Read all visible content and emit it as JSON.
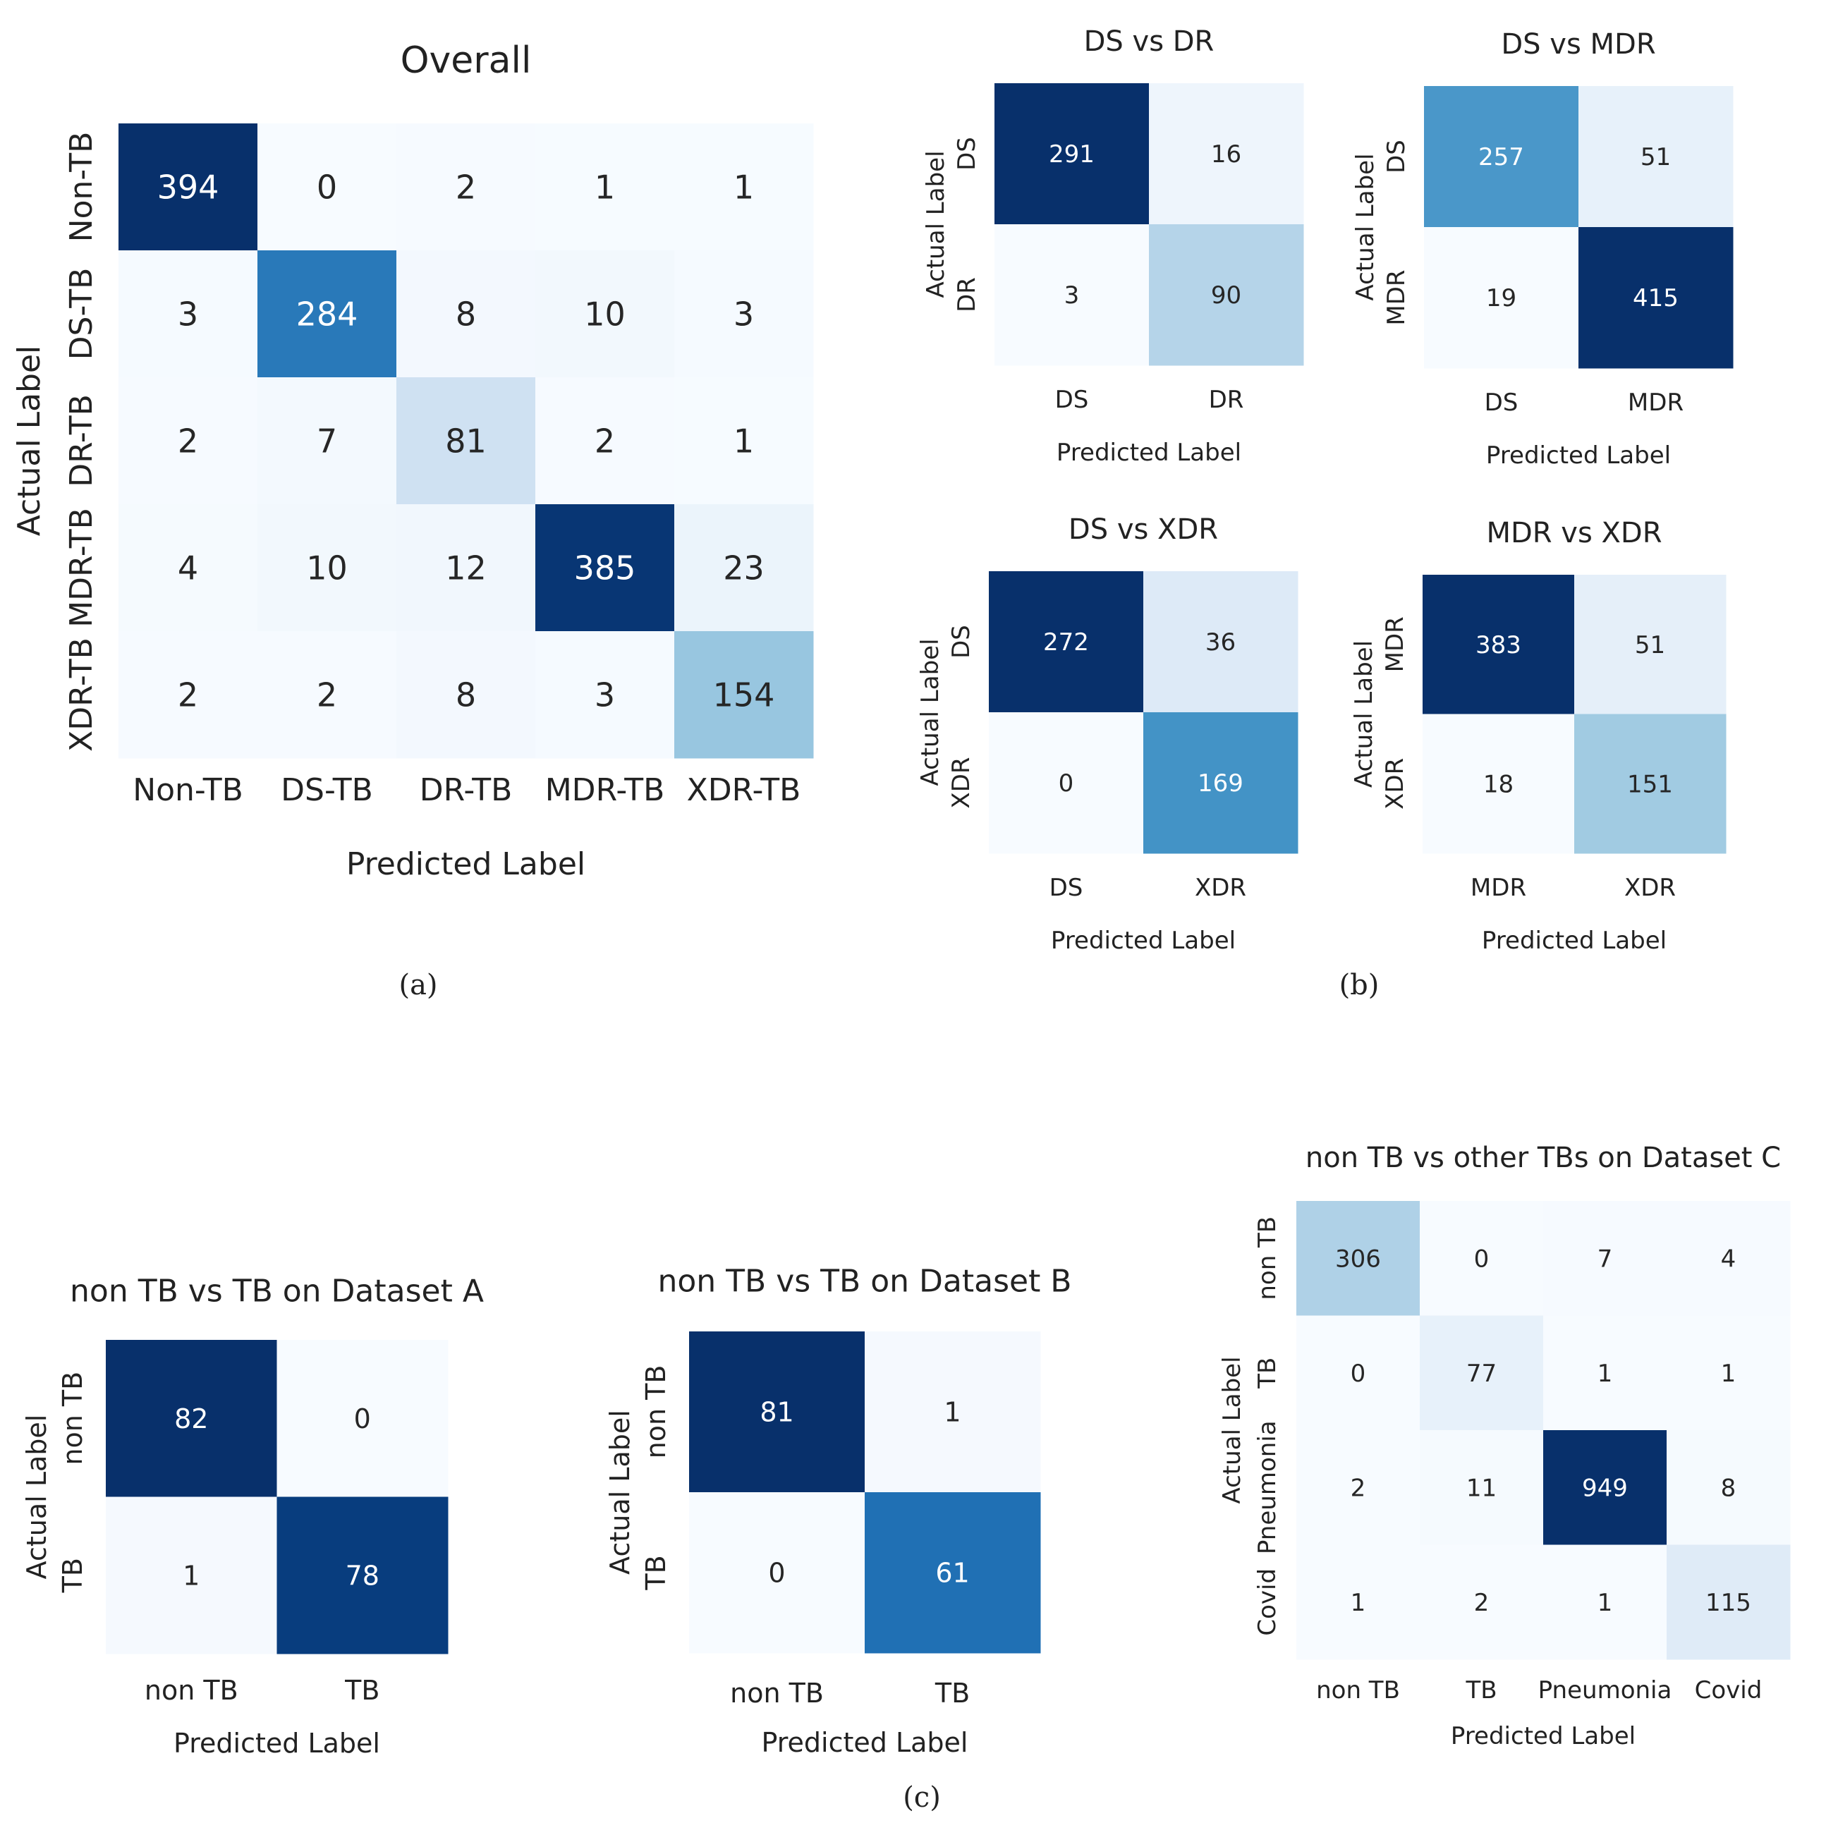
{
  "panel_labels": {
    "a": "(a)",
    "b": "(b)",
    "c": "(c)"
  },
  "colors": {
    "scale": [
      "#f7fbff",
      "#deebf7",
      "#c6dbef",
      "#9ecae1",
      "#6baed6",
      "#4292c6",
      "#2171b5",
      "#08519c",
      "#08306b"
    ],
    "text_dark": "#262626",
    "text_light": "#ffffff"
  },
  "chart_data": [
    {
      "id": "overall",
      "type": "heatmap",
      "title": "Overall",
      "xlabel": "Predicted Label",
      "ylabel": "Actual Label",
      "x_categories": [
        "Non-TB",
        "DS-TB",
        "DR-TB",
        "MDR-TB",
        "XDR-TB"
      ],
      "y_categories": [
        "Non-TB",
        "DS-TB",
        "DR-TB",
        "MDR-TB",
        "XDR-TB"
      ],
      "values": [
        [
          394,
          0,
          2,
          1,
          1
        ],
        [
          3,
          284,
          8,
          10,
          3
        ],
        [
          2,
          7,
          81,
          2,
          1
        ],
        [
          4,
          10,
          12,
          385,
          23
        ],
        [
          2,
          2,
          8,
          3,
          154
        ]
      ],
      "colorbar": false
    },
    {
      "id": "ds-vs-dr",
      "type": "heatmap",
      "title": "DS vs DR",
      "xlabel": "Predicted Label",
      "ylabel": "Actual Label",
      "x_categories": [
        "DS",
        "DR"
      ],
      "y_categories": [
        "DS",
        "DR"
      ],
      "values": [
        [
          291,
          16
        ],
        [
          3,
          90
        ]
      ]
    },
    {
      "id": "ds-vs-mdr",
      "type": "heatmap",
      "title": "DS vs MDR",
      "xlabel": "Predicted Label",
      "ylabel": "Actual Label",
      "x_categories": [
        "DS",
        "MDR"
      ],
      "y_categories": [
        "DS",
        "MDR"
      ],
      "values": [
        [
          257,
          51
        ],
        [
          19,
          415
        ]
      ]
    },
    {
      "id": "ds-vs-xdr",
      "type": "heatmap",
      "title": "DS vs XDR",
      "xlabel": "Predicted Label",
      "ylabel": "Actual Label",
      "x_categories": [
        "DS",
        "XDR"
      ],
      "y_categories": [
        "DS",
        "XDR"
      ],
      "values": [
        [
          272,
          36
        ],
        [
          0,
          169
        ]
      ]
    },
    {
      "id": "mdr-vs-xdr",
      "type": "heatmap",
      "title": "MDR vs XDR",
      "xlabel": "Predicted Label",
      "ylabel": "Actual Label",
      "x_categories": [
        "MDR",
        "XDR"
      ],
      "y_categories": [
        "MDR",
        "XDR"
      ],
      "values": [
        [
          383,
          51
        ],
        [
          18,
          151
        ]
      ]
    },
    {
      "id": "dataset-a",
      "type": "heatmap",
      "title": "non TB vs TB on Dataset A",
      "xlabel": "Predicted Label",
      "ylabel": "Actual Label",
      "x_categories": [
        "non TB",
        "TB"
      ],
      "y_categories": [
        "non TB",
        "TB"
      ],
      "values": [
        [
          82,
          0
        ],
        [
          1,
          78
        ]
      ]
    },
    {
      "id": "dataset-b",
      "type": "heatmap",
      "title": "non TB vs TB on Dataset B",
      "xlabel": "Predicted Label",
      "ylabel": "Actual Label",
      "x_categories": [
        "non TB",
        "TB"
      ],
      "y_categories": [
        "non TB",
        "TB"
      ],
      "values": [
        [
          81,
          1
        ],
        [
          0,
          61
        ]
      ]
    },
    {
      "id": "dataset-c",
      "type": "heatmap",
      "title": "non TB vs other TBs on Dataset C",
      "xlabel": "Predicted Label",
      "ylabel": "Actual Label",
      "x_categories": [
        "non TB",
        "TB",
        "Pneumonia",
        "Covid"
      ],
      "y_categories": [
        "non TB",
        "TB",
        "Pneumonia",
        "Covid"
      ],
      "values": [
        [
          306,
          0,
          7,
          4
        ],
        [
          0,
          77,
          1,
          1
        ],
        [
          2,
          11,
          949,
          8
        ],
        [
          1,
          2,
          1,
          115
        ]
      ]
    }
  ]
}
